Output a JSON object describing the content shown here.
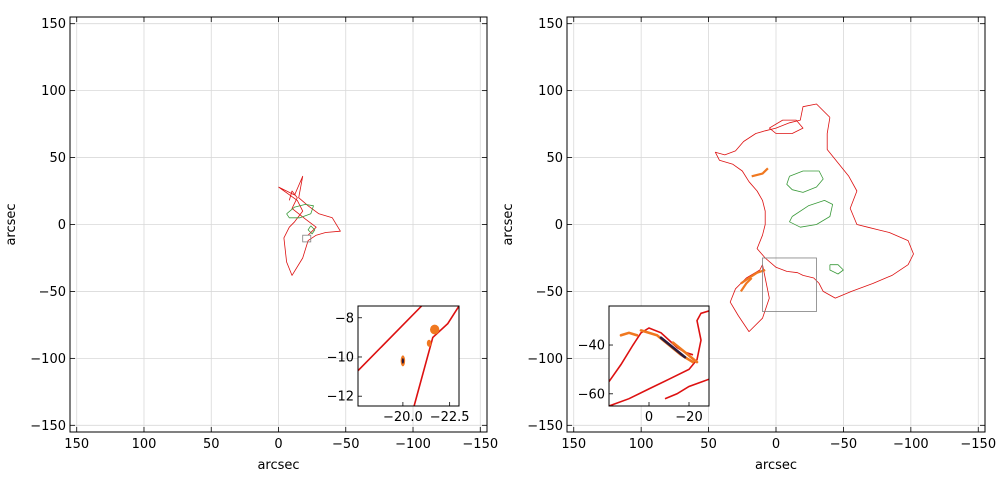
{
  "colors": {
    "red": "#dd1111",
    "green": "#3a9a3a",
    "orange": "#f07820",
    "dark": "#2a1a3a",
    "grid": "#d9d9d9",
    "inset_box": "#808080"
  },
  "chart_data": [
    {
      "type": "line",
      "xlabel": "arcsec",
      "ylabel": "arcsec",
      "xlim": [
        155,
        -155
      ],
      "ylim": [
        -155,
        155
      ],
      "x_ticks": [
        150,
        100,
        50,
        0,
        -50,
        -100,
        -150
      ],
      "y_ticks": [
        150,
        100,
        50,
        0,
        -50,
        -100,
        -150
      ],
      "grid": true,
      "series": [
        {
          "color": "red",
          "kind": "caustic",
          "points": [
            [
              0,
              28
            ],
            [
              -12,
              22
            ],
            [
              -18,
              36
            ],
            [
              -15,
              20
            ],
            [
              -22,
              14
            ],
            [
              -30,
              8
            ],
            [
              -40,
              5
            ],
            [
              -46,
              -5
            ],
            [
              -35,
              -6
            ],
            [
              -28,
              -8
            ],
            [
              -22,
              -12
            ],
            [
              -18,
              -25
            ],
            [
              -10,
              -38
            ],
            [
              -6,
              -28
            ],
            [
              -4,
              -10
            ],
            [
              -8,
              -2
            ],
            [
              -12,
              2
            ],
            [
              -18,
              10
            ],
            [
              -14,
              18
            ],
            [
              0,
              28
            ]
          ]
        },
        {
          "color": "red",
          "kind": "caustic",
          "points": [
            [
              -8,
              18
            ],
            [
              -10,
              25
            ],
            [
              -14,
              20
            ],
            [
              -10,
              12
            ],
            [
              -20,
              4
            ],
            [
              -28,
              -2
            ],
            [
              -22,
              -8
            ]
          ]
        },
        {
          "color": "green",
          "kind": "critical",
          "points": [
            [
              -6,
              8
            ],
            [
              -12,
              13
            ],
            [
              -20,
              15
            ],
            [
              -26,
              14
            ],
            [
              -24,
              8
            ],
            [
              -16,
              5
            ],
            [
              -8,
              5
            ],
            [
              -6,
              8
            ]
          ]
        },
        {
          "color": "green",
          "kind": "critical",
          "points": [
            [
              -24,
              -1
            ],
            [
              -27,
              -4
            ],
            [
              -25,
              -7
            ],
            [
              -22,
              -4
            ],
            [
              -24,
              -1
            ]
          ]
        }
      ],
      "inset_region": {
        "x": [
          -18,
          -24
        ],
        "y": [
          -8,
          -13
        ]
      },
      "inset": {
        "xlim": [
          -17.6,
          -23.0
        ],
        "ylim": [
          -12.5,
          -7.4
        ],
        "x_ticks": [
          -20.0,
          -22.5
        ],
        "y_ticks": [
          -8,
          -10,
          -12
        ],
        "x_tick_labels": [
          "−20.0",
          "−22.5"
        ],
        "y_tick_labels": [
          "−8",
          "−10",
          "−12"
        ],
        "series": [
          {
            "color": "red",
            "points": [
              [
                -17.6,
                -10.7
              ],
              [
                -21.0,
                -7.4
              ]
            ]
          },
          {
            "color": "red",
            "points": [
              [
                -20.6,
                -12.5
              ],
              [
                -21.6,
                -9.0
              ],
              [
                -22.4,
                -8.3
              ],
              [
                -23.0,
                -7.4
              ]
            ]
          }
        ],
        "blobs": [
          {
            "color": "orange",
            "x": -21.7,
            "y": -8.6,
            "rx": 0.25,
            "ry": 0.25
          },
          {
            "color": "orange",
            "x": -21.4,
            "y": -9.3,
            "rx": 0.12,
            "ry": 0.18
          },
          {
            "color": "orange",
            "x": -20.0,
            "y": -10.2,
            "rx": 0.12,
            "ry": 0.28
          },
          {
            "color": "dark",
            "x": -20.0,
            "y": -10.2,
            "rx": 0.06,
            "ry": 0.14
          }
        ]
      }
    },
    {
      "type": "line",
      "xlabel": "arcsec",
      "ylabel": "arcsec",
      "xlim": [
        155,
        -155
      ],
      "ylim": [
        -155,
        155
      ],
      "x_ticks": [
        150,
        100,
        50,
        0,
        -50,
        -100,
        -150
      ],
      "y_ticks": [
        150,
        100,
        50,
        0,
        -50,
        -100,
        -150
      ],
      "grid": true,
      "series": [
        {
          "color": "red",
          "kind": "caustic",
          "points": [
            [
              -40,
              80
            ],
            [
              -30,
              90
            ],
            [
              -20,
              88
            ],
            [
              -18,
              78
            ],
            [
              -10,
              76
            ],
            [
              0,
              72
            ],
            [
              8,
              70
            ],
            [
              15,
              68
            ],
            [
              24,
              62
            ],
            [
              30,
              55
            ],
            [
              38,
              52
            ],
            [
              45,
              54
            ],
            [
              42,
              48
            ],
            [
              32,
              45
            ],
            [
              25,
              40
            ],
            [
              20,
              32
            ],
            [
              14,
              25
            ],
            [
              10,
              18
            ],
            [
              8,
              10
            ],
            [
              8,
              0
            ],
            [
              10,
              -8
            ],
            [
              14,
              -18
            ],
            [
              8,
              -25
            ],
            [
              0,
              -32
            ],
            [
              -8,
              -35
            ],
            [
              -16,
              -36
            ],
            [
              -20,
              -38
            ],
            [
              -28,
              -40
            ],
            [
              -32,
              -44
            ],
            [
              -35,
              -50
            ],
            [
              -44,
              -55
            ],
            [
              -56,
              -50
            ],
            [
              -72,
              -44
            ],
            [
              -86,
              -38
            ],
            [
              -98,
              -30
            ],
            [
              -102,
              -22
            ],
            [
              -98,
              -12
            ],
            [
              -84,
              -6
            ],
            [
              -76,
              -4
            ],
            [
              -68,
              -2
            ],
            [
              -60,
              0
            ],
            [
              -55,
              12
            ],
            [
              -60,
              25
            ],
            [
              -54,
              36
            ],
            [
              -46,
              46
            ],
            [
              -38,
              56
            ],
            [
              -38,
              68
            ],
            [
              -40,
              80
            ]
          ]
        },
        {
          "color": "red",
          "kind": "caustic",
          "points": [
            [
              10,
              -30
            ],
            [
              8,
              -40
            ],
            [
              5,
              -55
            ],
            [
              10,
              -70
            ],
            [
              20,
              -80
            ],
            [
              28,
              -68
            ],
            [
              34,
              -58
            ],
            [
              30,
              -48
            ],
            [
              22,
              -40
            ],
            [
              12,
              -34
            ],
            [
              10,
              -30
            ]
          ]
        },
        {
          "color": "red",
          "kind": "caustic",
          "points": [
            [
              5,
              72
            ],
            [
              -5,
              78
            ],
            [
              -15,
              78
            ],
            [
              -20,
              72
            ],
            [
              -12,
              68
            ],
            [
              0,
              68
            ],
            [
              5,
              72
            ]
          ]
        },
        {
          "color": "green",
          "kind": "critical",
          "points": [
            [
              -10,
              36
            ],
            [
              -20,
              40
            ],
            [
              -32,
              40
            ],
            [
              -35,
              34
            ],
            [
              -30,
              28
            ],
            [
              -20,
              24
            ],
            [
              -12,
              26
            ],
            [
              -8,
              30
            ],
            [
              -10,
              36
            ]
          ]
        },
        {
          "color": "green",
          "kind": "critical",
          "points": [
            [
              -12,
              6
            ],
            [
              -24,
              14
            ],
            [
              -36,
              18
            ],
            [
              -42,
              15
            ],
            [
              -40,
              6
            ],
            [
              -30,
              0
            ],
            [
              -18,
              -2
            ],
            [
              -10,
              2
            ],
            [
              -12,
              6
            ]
          ]
        },
        {
          "color": "green",
          "kind": "critical",
          "points": [
            [
              -40,
              -30
            ],
            [
              -46,
              -30
            ],
            [
              -50,
              -34
            ],
            [
              -46,
              -37
            ],
            [
              -40,
              -34
            ],
            [
              -40,
              -30
            ]
          ]
        },
        {
          "color": "orange",
          "kind": "arc",
          "points": [
            [
              6,
              42
            ],
            [
              10,
              38
            ],
            [
              18,
              36
            ]
          ]
        },
        {
          "color": "orange",
          "kind": "arc",
          "points": [
            [
              8,
              -34
            ],
            [
              14,
              -36
            ],
            [
              20,
              -40
            ],
            [
              26,
              -44
            ]
          ]
        },
        {
          "color": "orange",
          "kind": "arc",
          "points": [
            [
              18,
              -40
            ],
            [
              22,
              -44
            ],
            [
              26,
              -50
            ]
          ]
        }
      ],
      "inset_region": {
        "x": [
          10,
          -30
        ],
        "y": [
          -25,
          -65
        ]
      },
      "inset": {
        "xlim": [
          20,
          -30
        ],
        "ylim": [
          -65,
          -24
        ],
        "x_ticks": [
          0,
          -20
        ],
        "y_ticks": [
          -40,
          -60
        ],
        "x_tick_labels": [
          "0",
          "−20"
        ],
        "y_tick_labels": [
          "−40",
          "−60"
        ],
        "series": [
          {
            "color": "red",
            "points": [
              [
                20,
                -55
              ],
              [
                14,
                -48
              ],
              [
                8,
                -40
              ],
              [
                4,
                -35
              ],
              [
                0,
                -33
              ],
              [
                -6,
                -35
              ],
              [
                -10,
                -38
              ],
              [
                -14,
                -41
              ],
              [
                -18,
                -43
              ],
              [
                -22,
                -44
              ]
            ]
          },
          {
            "color": "red",
            "points": [
              [
                20,
                -65
              ],
              [
                10,
                -62
              ],
              [
                0,
                -58
              ],
              [
                -10,
                -54
              ],
              [
                -20,
                -50
              ],
              [
                -24,
                -46
              ],
              [
                -26,
                -38
              ],
              [
                -24,
                -30
              ],
              [
                -26,
                -27
              ],
              [
                -30,
                -26
              ]
            ]
          },
          {
            "color": "red",
            "points": [
              [
                -8,
                -62
              ],
              [
                -14,
                -60
              ],
              [
                -20,
                -57
              ],
              [
                -30,
                -54
              ]
            ]
          }
        ],
        "arcs": [
          {
            "color": "orange",
            "points": [
              [
                14,
                -36
              ],
              [
                10,
                -35
              ],
              [
                6,
                -36
              ]
            ]
          },
          {
            "color": "orange",
            "points": [
              [
                4,
                -34
              ],
              [
                -4,
                -36
              ],
              [
                -10,
                -40
              ],
              [
                -16,
                -44
              ],
              [
                -22,
                -47
              ]
            ]
          },
          {
            "color": "dark",
            "points": [
              [
                -6,
                -37
              ],
              [
                -12,
                -41
              ],
              [
                -18,
                -45
              ]
            ]
          },
          {
            "color": "orange",
            "points": [
              [
                -12,
                -39
              ],
              [
                -18,
                -43
              ],
              [
                -24,
                -47
              ]
            ]
          }
        ]
      }
    }
  ]
}
